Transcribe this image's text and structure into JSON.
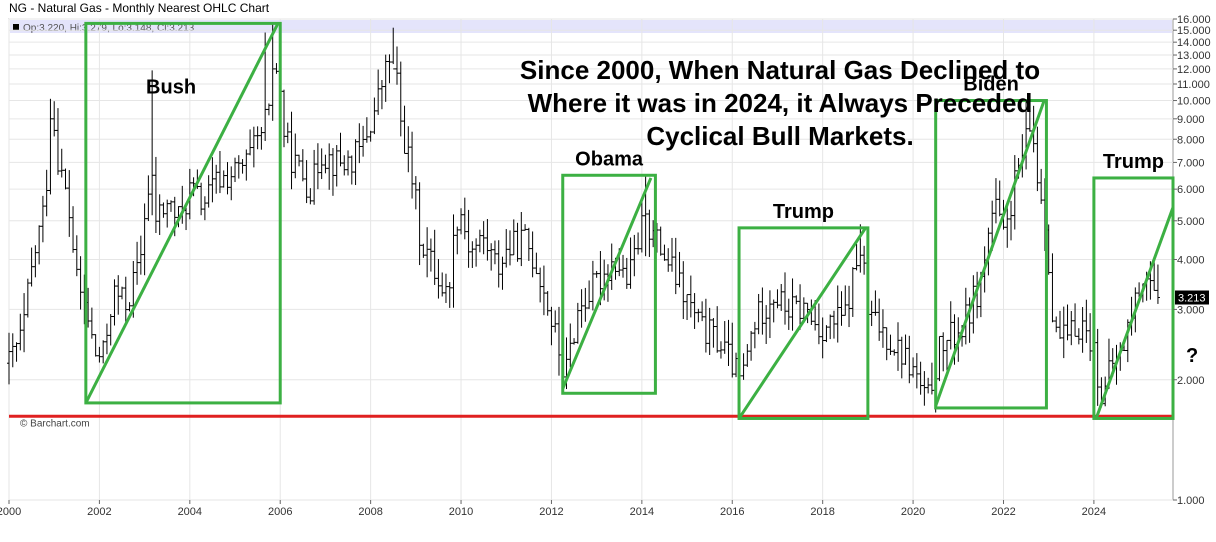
{
  "title": "NG - Natural Gas - Monthly Nearest OHLC Chart",
  "ohlc_label": "Op:3.220, Hi:3.279, Lo:3.148, Cl:3.213",
  "credit": "© Barchart.com",
  "last_price_tag": "3.213",
  "headline": [
    "Since 2000, When Natural Gas Declined to",
    "Where it was in 2024, it Always Preceded",
    "Cyclical Bull Markets."
  ],
  "question_mark": "?",
  "colors": {
    "box": "#3cb043",
    "support": "#e02020",
    "bars": "#000000",
    "price_tag_bg": "#000000",
    "header_band": "#e4e4fb"
  },
  "chart_data": {
    "type": "ohlc",
    "y_scale": "log",
    "ylim": [
      1.0,
      16.0
    ],
    "y_ticks": [
      "1.000",
      "2.000",
      "3.000",
      "4.000",
      "5.000",
      "6.000",
      "7.000",
      "8.000",
      "9.000",
      "10.000",
      "11.000",
      "12.000",
      "13.000",
      "14.000",
      "15.000",
      "16.000"
    ],
    "x_ticks": [
      "2000",
      "2002",
      "2004",
      "2006",
      "2008",
      "2010",
      "2012",
      "2014",
      "2016",
      "2018",
      "2020",
      "2022",
      "2024"
    ],
    "xlim": [
      2000.0,
      2025.75
    ],
    "support_level": 1.62,
    "last_close": 3.213,
    "anchors": [
      [
        2000.0,
        2.2
      ],
      [
        2000.3,
        2.6
      ],
      [
        2000.6,
        4.3
      ],
      [
        2000.8,
        5.5
      ],
      [
        2000.95,
        9.5
      ],
      [
        2001.1,
        7.0
      ],
      [
        2001.3,
        5.5
      ],
      [
        2001.5,
        3.5
      ],
      [
        2001.7,
        3.0
      ],
      [
        2001.9,
        2.3
      ],
      [
        2002.1,
        2.3
      ],
      [
        2002.3,
        3.3
      ],
      [
        2002.6,
        3.1
      ],
      [
        2002.9,
        3.9
      ],
      [
        2003.05,
        6.0
      ],
      [
        2003.2,
        5.0
      ],
      [
        2003.5,
        5.5
      ],
      [
        2003.8,
        5.0
      ],
      [
        2004.0,
        6.0
      ],
      [
        2004.3,
        5.5
      ],
      [
        2004.6,
        6.3
      ],
      [
        2004.9,
        6.5
      ],
      [
        2005.2,
        6.8
      ],
      [
        2005.5,
        7.8
      ],
      [
        2005.75,
        9.0
      ],
      [
        2005.85,
        13.0
      ],
      [
        2005.95,
        11.5
      ],
      [
        2006.1,
        8.0
      ],
      [
        2006.3,
        7.0
      ],
      [
        2006.7,
        6.0
      ],
      [
        2006.9,
        7.5
      ],
      [
        2007.2,
        7.0
      ],
      [
        2007.5,
        7.0
      ],
      [
        2007.8,
        7.5
      ],
      [
        2008.1,
        9.5
      ],
      [
        2008.35,
        12.0
      ],
      [
        2008.5,
        13.5
      ],
      [
        2008.65,
        9.0
      ],
      [
        2008.9,
        6.5
      ],
      [
        2009.1,
        4.5
      ],
      [
        2009.4,
        3.8
      ],
      [
        2009.7,
        3.2
      ],
      [
        2009.95,
        5.5
      ],
      [
        2010.2,
        4.2
      ],
      [
        2010.5,
        4.5
      ],
      [
        2010.8,
        3.8
      ],
      [
        2011.0,
        4.2
      ],
      [
        2011.4,
        4.5
      ],
      [
        2011.7,
        3.8
      ],
      [
        2012.0,
        2.8
      ],
      [
        2012.3,
        2.0
      ],
      [
        2012.6,
        3.0
      ],
      [
        2013.0,
        3.5
      ],
      [
        2013.4,
        4.0
      ],
      [
        2013.7,
        3.5
      ],
      [
        2014.05,
        5.0
      ],
      [
        2014.3,
        4.5
      ],
      [
        2014.6,
        3.9
      ],
      [
        2014.9,
        3.3
      ],
      [
        2015.3,
        2.7
      ],
      [
        2015.7,
        2.5
      ],
      [
        2016.0,
        2.2
      ],
      [
        2016.2,
        1.95
      ],
      [
        2016.5,
        2.8
      ],
      [
        2016.9,
        3.3
      ],
      [
        2017.2,
        3.0
      ],
      [
        2017.6,
        3.0
      ],
      [
        2017.9,
        2.7
      ],
      [
        2018.2,
        2.75
      ],
      [
        2018.5,
        2.9
      ],
      [
        2018.85,
        4.3
      ],
      [
        2019.0,
        2.9
      ],
      [
        2019.4,
        2.6
      ],
      [
        2019.8,
        2.3
      ],
      [
        2020.1,
        2.0
      ],
      [
        2020.3,
        1.72
      ],
      [
        2020.6,
        2.4
      ],
      [
        2020.9,
        2.6
      ],
      [
        2021.1,
        2.7
      ],
      [
        2021.5,
        3.5
      ],
      [
        2021.8,
        5.5
      ],
      [
        2022.0,
        4.5
      ],
      [
        2022.3,
        6.5
      ],
      [
        2022.6,
        8.5
      ],
      [
        2022.75,
        6.5
      ],
      [
        2022.95,
        4.8
      ],
      [
        2023.1,
        2.6
      ],
      [
        2023.4,
        2.5
      ],
      [
        2023.7,
        2.8
      ],
      [
        2023.95,
        2.5
      ],
      [
        2024.2,
        1.75
      ],
      [
        2024.4,
        2.2
      ],
      [
        2024.6,
        2.3
      ],
      [
        2024.9,
        3.1
      ],
      [
        2025.0,
        3.4
      ],
      [
        2025.15,
        3.8
      ],
      [
        2025.35,
        3.2
      ],
      [
        2025.45,
        3.213
      ]
    ],
    "spikes": [
      [
        2000.9,
        10.1,
        9.0
      ],
      [
        2003.15,
        11.9,
        6.5
      ],
      [
        2005.7,
        14.8,
        9.5
      ],
      [
        2005.85,
        15.6,
        12.0
      ],
      [
        2008.5,
        13.7,
        12.0
      ],
      [
        2014.1,
        6.5,
        5.2
      ],
      [
        2018.85,
        4.9,
        4.1
      ],
      [
        2022.5,
        10.0,
        8.5
      ],
      [
        2022.7,
        9.7,
        7.8
      ]
    ],
    "boxes": [
      {
        "label": "Bush",
        "x0": 2001.7,
        "x1": 2006.0,
        "y0": 1.75,
        "y1": 15.6
      },
      {
        "label": "Obama",
        "x0": 2012.25,
        "x1": 2014.3,
        "y0": 1.85,
        "y1": 6.5
      },
      {
        "label": "Trump",
        "x0": 2016.15,
        "x1": 2019.0,
        "y0": 1.6,
        "y1": 4.8
      },
      {
        "label": "Biden",
        "x0": 2020.5,
        "x1": 2022.95,
        "y0": 1.7,
        "y1": 10.0
      },
      {
        "label": "Trump",
        "x0": 2024.0,
        "x1": 2025.75,
        "y0": 1.6,
        "y1": 6.4
      }
    ],
    "trend_lines": [
      [
        2001.7,
        1.75,
        2005.95,
        15.6
      ],
      [
        2012.25,
        1.9,
        2014.2,
        6.4
      ],
      [
        2016.15,
        1.6,
        2018.95,
        4.8
      ],
      [
        2020.5,
        1.72,
        2022.9,
        10.0
      ],
      [
        2024.05,
        1.6,
        2025.75,
        5.4
      ]
    ]
  }
}
